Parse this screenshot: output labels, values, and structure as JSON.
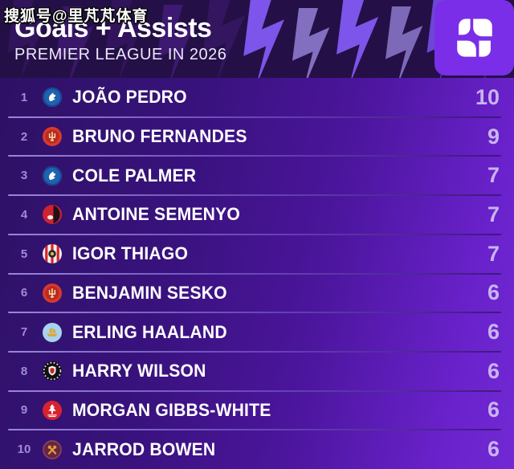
{
  "watermark": "搜狐号@里芃芃体育",
  "header": {
    "title": "Goals + Assists",
    "subtitle": "PREMIER LEAGUE IN 2026",
    "logo_name": "sofascore-logo"
  },
  "colors": {
    "header_bg": "#241046",
    "logo_bg": "#7b2ee8",
    "list_gradient_start": "#2d1163",
    "list_gradient_end": "#7129d4",
    "rank_color": "#a08bd8",
    "name_color": "#ffffff",
    "value_color": "#c7b4f0",
    "separator_color": "#ad9aeb"
  },
  "chart_data": {
    "type": "table",
    "title": "Goals + Assists",
    "subtitle": "PREMIER LEAGUE IN 2026",
    "columns": [
      "rank",
      "player",
      "goals_plus_assists"
    ],
    "categories": [
      "JOÃO PEDRO",
      "BRUNO FERNANDES",
      "COLE PALMER",
      "ANTOINE SEMENYO",
      "IGOR THIAGO",
      "BENJAMIN SESKO",
      "ERLING HAALAND",
      "HARRY WILSON",
      "MORGAN GIBBS-WHITE",
      "JARROD BOWEN"
    ],
    "values": [
      10,
      9,
      7,
      7,
      7,
      6,
      6,
      6,
      6,
      6
    ]
  },
  "list": {
    "players": [
      {
        "rank": "1",
        "name": "JOÃO PEDRO",
        "value": "10",
        "team": "chelsea",
        "badge": {
          "glyph": "lion",
          "bg": "#1f63b0",
          "fg": "#ffffff"
        }
      },
      {
        "rank": "2",
        "name": "BRUNO FERNANDES",
        "value": "9",
        "team": "manchester-united",
        "badge": {
          "glyph": "devil",
          "bg": "#d8392c",
          "fg": "#f6dfae",
          "accent": "#b92b20"
        }
      },
      {
        "rank": "3",
        "name": "COLE PALMER",
        "value": "7",
        "team": "chelsea",
        "badge": {
          "glyph": "lion",
          "bg": "#1f63b0",
          "fg": "#ffffff"
        }
      },
      {
        "rank": "4",
        "name": "ANTOINE SEMENYO",
        "value": "7",
        "team": "bournemouth",
        "badge": {
          "glyph": "half",
          "bg": "#cf2231",
          "fg": "#1c1117",
          "accent": "#f4ece6"
        }
      },
      {
        "rank": "5",
        "name": "IGOR THIAGO",
        "value": "7",
        "team": "brentford",
        "badge": {
          "glyph": "bee",
          "bg": "#f2efe9",
          "fg": "#d8232a",
          "accent": "#22282e",
          "accent2": "#e3b93f"
        }
      },
      {
        "rank": "6",
        "name": "BENJAMIN SESKO",
        "value": "6",
        "team": "manchester-united",
        "badge": {
          "glyph": "devil",
          "bg": "#d8392c",
          "fg": "#f6dfae",
          "accent": "#b92b20"
        }
      },
      {
        "rank": "7",
        "name": "ERLING HAALAND",
        "value": "6",
        "team": "manchester-city",
        "badge": {
          "glyph": "ship",
          "bg": "#a9d2ee",
          "fg": "#d9a83a"
        }
      },
      {
        "rank": "8",
        "name": "HARRY WILSON",
        "value": "6",
        "team": "fulham",
        "badge": {
          "glyph": "shield",
          "bg": "#121214",
          "fg": "#f5f2ee",
          "accent": "#c1272d"
        }
      },
      {
        "rank": "9",
        "name": "MORGAN GIBBS-WHITE",
        "value": "6",
        "team": "nottingham-forest",
        "badge": {
          "glyph": "tree",
          "bg": "#d8222f",
          "fg": "#ffffff"
        }
      },
      {
        "rank": "10",
        "name": "JARROD BOWEN",
        "value": "6",
        "team": "west-ham",
        "badge": {
          "glyph": "hammers",
          "bg": "#6b2440",
          "fg": "#d9a13b"
        }
      }
    ]
  }
}
